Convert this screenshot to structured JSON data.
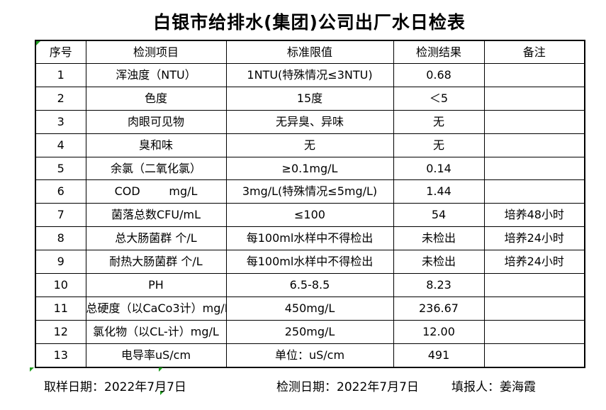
{
  "title": "白银市给排水(集团)公司出厂水日检表",
  "table": {
    "headers": [
      "序号",
      "检测项目",
      "标准限值",
      "检测结果",
      "备注"
    ],
    "rows": [
      [
        "1",
        "浑浊度（NTU）",
        "1NTU(特殊情况≤3NTU)",
        "0.68",
        ""
      ],
      [
        "2",
        "色度",
        "15度",
        "＜5",
        ""
      ],
      [
        "3",
        "肉眼可见物",
        "无异臭、异味",
        "无",
        ""
      ],
      [
        "4",
        "臭和味",
        "无",
        "无",
        ""
      ],
      [
        "5",
        "余氯（二氧化氯）",
        "≥0.1mg/L",
        "0.14",
        ""
      ],
      [
        "6",
        "COD        mg/L",
        "3mg/L(特殊情况≤5mg/L)",
        "1.44",
        ""
      ],
      [
        "7",
        "菌落总数CFU/mL",
        "≤100",
        "54",
        "培养48小时"
      ],
      [
        "8",
        "总大肠菌群 个/L",
        "每100ml水样中不得检出",
        "未检出",
        "培养24小时"
      ],
      [
        "9",
        "耐热大肠菌群 个/L",
        "每100ml水样中不得检出",
        "未检出",
        "培养24小时"
      ],
      [
        "10",
        "PH",
        "6.5-8.5",
        "8.23",
        ""
      ],
      [
        "11",
        "总硬度（以CaCo3计）mg/L",
        "450mg/L",
        "236.67",
        ""
      ],
      [
        "12",
        "氯化物（以CL-计）mg/L",
        "250mg/L",
        "12.00",
        ""
      ],
      [
        "13",
        "电导率uS/cm",
        "单位：uS/cm",
        "491",
        ""
      ]
    ]
  },
  "footer": {
    "sample_date": "取样日期：2022年7月7日",
    "test_date": "检测日期：2022年7月7日",
    "reporter": "填报人：姜海霞"
  },
  "colors": {
    "marker_green": "#1f9d1f",
    "border": "#000000",
    "background": "#ffffff"
  }
}
